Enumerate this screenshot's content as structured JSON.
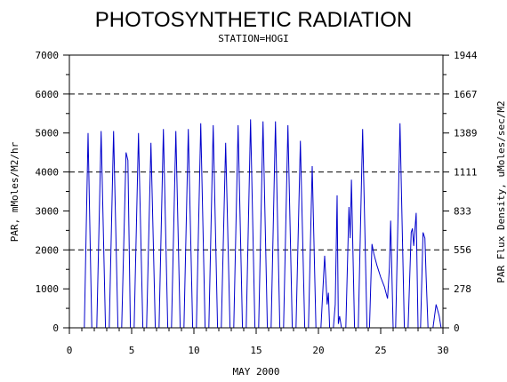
{
  "chart_data": {
    "type": "line",
    "title": "PHOTOSYNTHETIC RADIATION",
    "subtitle": "STATION=HOGI",
    "xlabel": "MAY 2000",
    "ylabel_left": "PAR, mMoles/M2/hr",
    "ylabel_right": "PAR Flux Density, uMoles/sec/M2",
    "xlim": [
      0,
      30
    ],
    "ylim": [
      0,
      7000
    ],
    "x_ticks": [
      0,
      5,
      10,
      15,
      20,
      25,
      30
    ],
    "y_ticks_left": [
      0,
      1000,
      2000,
      3000,
      4000,
      5000,
      6000,
      7000
    ],
    "y_ticks_right": [
      {
        "value": 0,
        "label": "0"
      },
      {
        "value": 278,
        "label": "278"
      },
      {
        "value": 556,
        "label": "556"
      },
      {
        "value": 833,
        "label": "833"
      },
      {
        "value": 1111,
        "label": "1111"
      },
      {
        "value": 1389,
        "label": "1389"
      },
      {
        "value": 1667,
        "label": "1667"
      },
      {
        "value": 1944,
        "label": "1944"
      }
    ],
    "right_axis_factor": 0.2778,
    "dashed_gridlines_y": [
      2000,
      4000,
      6000
    ],
    "line_color": "#0000cc",
    "series": [
      {
        "values": [
          [
            1.2,
            0
          ],
          [
            1.5,
            5000
          ],
          [
            1.8,
            0
          ],
          [
            2.2,
            0
          ],
          [
            2.55,
            5050
          ],
          [
            2.9,
            0
          ],
          [
            3.2,
            0
          ],
          [
            3.55,
            5050
          ],
          [
            3.9,
            0
          ],
          [
            4.2,
            0
          ],
          [
            4.55,
            4500
          ],
          [
            4.7,
            4300
          ],
          [
            4.9,
            0
          ],
          [
            5.2,
            0
          ],
          [
            5.55,
            5000
          ],
          [
            5.9,
            0
          ],
          [
            6.2,
            0
          ],
          [
            6.55,
            4750
          ],
          [
            6.9,
            0
          ],
          [
            7.2,
            0
          ],
          [
            7.55,
            5100
          ],
          [
            7.9,
            0
          ],
          [
            8.2,
            0
          ],
          [
            8.55,
            5050
          ],
          [
            8.9,
            0
          ],
          [
            9.2,
            0
          ],
          [
            9.55,
            5100
          ],
          [
            9.9,
            0
          ],
          [
            10.2,
            0
          ],
          [
            10.55,
            5250
          ],
          [
            10.9,
            0
          ],
          [
            11.2,
            0
          ],
          [
            11.55,
            5200
          ],
          [
            11.9,
            0
          ],
          [
            12.2,
            0
          ],
          [
            12.55,
            4750
          ],
          [
            12.9,
            0
          ],
          [
            13.2,
            0
          ],
          [
            13.55,
            5200
          ],
          [
            13.9,
            0
          ],
          [
            14.2,
            0
          ],
          [
            14.55,
            5350
          ],
          [
            14.9,
            0
          ],
          [
            15.2,
            0
          ],
          [
            15.55,
            5300
          ],
          [
            15.9,
            0
          ],
          [
            16.2,
            0
          ],
          [
            16.55,
            5300
          ],
          [
            16.9,
            0
          ],
          [
            17.2,
            0
          ],
          [
            17.55,
            5200
          ],
          [
            17.9,
            0
          ],
          [
            18.2,
            0
          ],
          [
            18.55,
            4800
          ],
          [
            18.9,
            0
          ],
          [
            19.2,
            0
          ],
          [
            19.5,
            4150
          ],
          [
            19.8,
            0
          ],
          [
            20.2,
            0
          ],
          [
            20.5,
            1850
          ],
          [
            20.7,
            600
          ],
          [
            20.8,
            900
          ],
          [
            20.9,
            0
          ],
          [
            21.2,
            0
          ],
          [
            21.35,
            600
          ],
          [
            21.5,
            3400
          ],
          [
            21.6,
            100
          ],
          [
            21.7,
            300
          ],
          [
            21.85,
            0
          ],
          [
            22.2,
            0
          ],
          [
            22.45,
            3100
          ],
          [
            22.55,
            2300
          ],
          [
            22.65,
            3800
          ],
          [
            22.9,
            0
          ],
          [
            23.2,
            0
          ],
          [
            23.55,
            5100
          ],
          [
            23.9,
            0
          ],
          [
            24.1,
            0
          ],
          [
            24.3,
            2150
          ],
          [
            24.45,
            1900
          ],
          [
            24.7,
            1600
          ],
          [
            25.0,
            1300
          ],
          [
            25.3,
            1050
          ],
          [
            25.55,
            750
          ],
          [
            25.7,
            1550
          ],
          [
            25.8,
            2750
          ],
          [
            26.0,
            0
          ],
          [
            26.2,
            0
          ],
          [
            26.55,
            5250
          ],
          [
            26.9,
            0
          ],
          [
            27.2,
            0
          ],
          [
            27.45,
            2450
          ],
          [
            27.55,
            2550
          ],
          [
            27.65,
            2100
          ],
          [
            27.85,
            2950
          ],
          [
            28.0,
            0
          ],
          [
            28.2,
            0
          ],
          [
            28.4,
            2450
          ],
          [
            28.55,
            2300
          ],
          [
            28.65,
            1300
          ],
          [
            28.8,
            0
          ],
          [
            29.2,
            0
          ],
          [
            29.45,
            600
          ],
          [
            29.7,
            300
          ],
          [
            29.85,
            0
          ]
        ]
      }
    ]
  }
}
